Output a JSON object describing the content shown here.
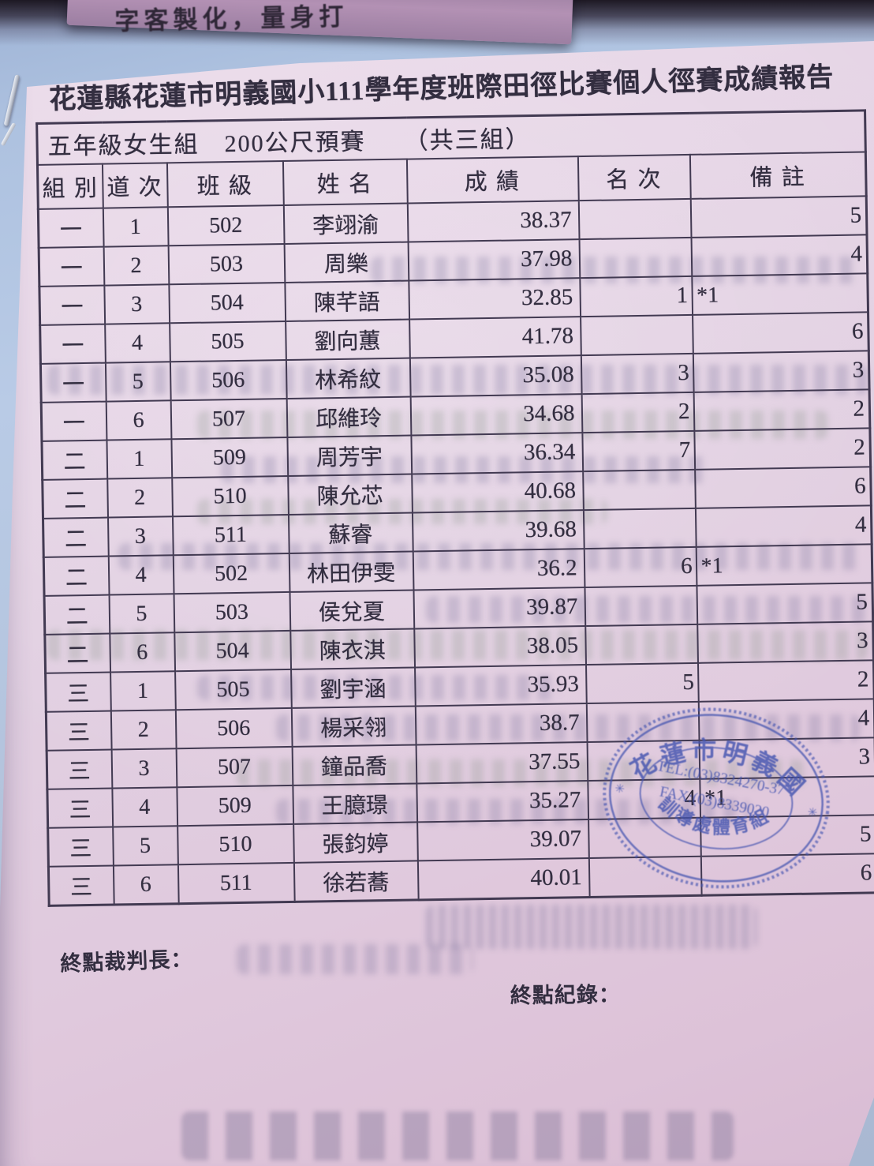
{
  "photo": {
    "promo_paper_text": "字客製化，量身打"
  },
  "document": {
    "title": "花蓮縣花蓮市明義國小111學年度班際田徑比賽個人徑賽成績報告",
    "subtitle": "五年級女生組　200公尺預賽　　（共三組）",
    "table": {
      "columns": [
        "組 別",
        "道 次",
        "班 級",
        "姓 名",
        "成 績",
        "名 次",
        "備 註"
      ],
      "rows": [
        {
          "group": "一",
          "lane": "1",
          "class_no": "502",
          "name": "李翊渝",
          "time": "38.37",
          "rank": "",
          "note_mark": "",
          "heat_place": "5"
        },
        {
          "group": "一",
          "lane": "2",
          "class_no": "503",
          "name": "周樂",
          "time": "37.98",
          "rank": "",
          "note_mark": "",
          "heat_place": "4"
        },
        {
          "group": "一",
          "lane": "3",
          "class_no": "504",
          "name": "陳芊語",
          "time": "32.85",
          "rank": "1",
          "note_mark": "*1",
          "heat_place": ""
        },
        {
          "group": "一",
          "lane": "4",
          "class_no": "505",
          "name": "劉向蕙",
          "time": "41.78",
          "rank": "",
          "note_mark": "",
          "heat_place": "6"
        },
        {
          "group": "一",
          "lane": "5",
          "class_no": "506",
          "name": "林希紋",
          "time": "35.08",
          "rank": "3",
          "note_mark": "",
          "heat_place": "3"
        },
        {
          "group": "一",
          "lane": "6",
          "class_no": "507",
          "name": "邱維玲",
          "time": "34.68",
          "rank": "2",
          "note_mark": "",
          "heat_place": "2"
        },
        {
          "group": "二",
          "lane": "1",
          "class_no": "509",
          "name": "周芳宇",
          "time": "36.34",
          "rank": "7",
          "note_mark": "",
          "heat_place": "2"
        },
        {
          "group": "二",
          "lane": "2",
          "class_no": "510",
          "name": "陳允芯",
          "time": "40.68",
          "rank": "",
          "note_mark": "",
          "heat_place": "6"
        },
        {
          "group": "二",
          "lane": "3",
          "class_no": "511",
          "name": "蘇睿",
          "time": "39.68",
          "rank": "",
          "note_mark": "",
          "heat_place": "4"
        },
        {
          "group": "二",
          "lane": "4",
          "class_no": "502",
          "name": "林田伊雯",
          "time": "36.2",
          "rank": "6",
          "note_mark": "*1",
          "heat_place": ""
        },
        {
          "group": "二",
          "lane": "5",
          "class_no": "503",
          "name": "侯兌夏",
          "time": "39.87",
          "rank": "",
          "note_mark": "",
          "heat_place": "5"
        },
        {
          "group": "二",
          "lane": "6",
          "class_no": "504",
          "name": "陳衣淇",
          "time": "38.05",
          "rank": "",
          "note_mark": "",
          "heat_place": "3"
        },
        {
          "group": "三",
          "lane": "1",
          "class_no": "505",
          "name": "劉宇涵",
          "time": "35.93",
          "rank": "5",
          "note_mark": "",
          "heat_place": "2"
        },
        {
          "group": "三",
          "lane": "2",
          "class_no": "506",
          "name": "楊采翎",
          "time": "38.7",
          "rank": "",
          "note_mark": "",
          "heat_place": "4"
        },
        {
          "group": "三",
          "lane": "3",
          "class_no": "507",
          "name": "鐘品喬",
          "time": "37.55",
          "rank": "",
          "note_mark": "",
          "heat_place": "3"
        },
        {
          "group": "三",
          "lane": "4",
          "class_no": "509",
          "name": "王臆璟",
          "time": "35.27",
          "rank": "4",
          "note_mark": "*1",
          "heat_place": ""
        },
        {
          "group": "三",
          "lane": "5",
          "class_no": "510",
          "name": "張鈞婷",
          "time": "39.07",
          "rank": "",
          "note_mark": "",
          "heat_place": "5"
        },
        {
          "group": "三",
          "lane": "6",
          "class_no": "511",
          "name": "徐若蕎",
          "time": "40.01",
          "rank": "",
          "note_mark": "",
          "heat_place": "6"
        }
      ]
    },
    "footer": {
      "finish_judge_label": "終點裁判長：",
      "finish_recorder_label": "終點紀錄："
    }
  },
  "stamp": {
    "arc_top": "花蓮市明義國",
    "arc_bottom": "訓導處體育組",
    "tel": "TEL:(03)8324270-37",
    "fax": "FAX:(03)8339020",
    "color": "#4454b0"
  },
  "colors": {
    "desk_background": "#b3c3dc",
    "paper_pink": "#e2cfe1",
    "table_line": "#423a52",
    "ink": "#332e40",
    "stamp_blue": "#4454b0",
    "top_shadow": "#261e2e"
  }
}
